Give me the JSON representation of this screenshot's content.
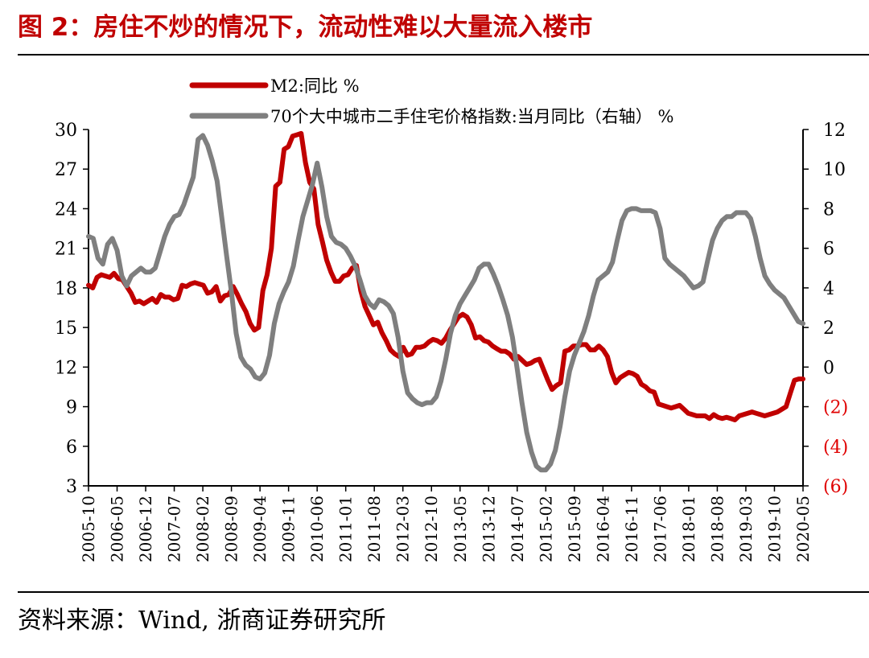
{
  "figure": {
    "title": "图 2：房住不炒的情况下，流动性难以大量流入楼市",
    "source": "资料来源：Wind, 浙商证券研究所"
  },
  "chart_data": {
    "type": "line",
    "title": "图 2：房住不炒的情况下，流动性难以大量流入楼市",
    "legend_position": "top",
    "x_tick_labels": [
      "2005-10",
      "2006-05",
      "2006-12",
      "2007-07",
      "2008-02",
      "2008-09",
      "2009-04",
      "2009-11",
      "2010-06",
      "2011-01",
      "2011-08",
      "2012-03",
      "2012-10",
      "2013-05",
      "2013-12",
      "2014-07",
      "2015-02",
      "2015-09",
      "2016-04",
      "2016-11",
      "2017-06",
      "2018-01",
      "2018-08",
      "2019-03",
      "2019-10",
      "2020-05"
    ],
    "y_left": {
      "min": 3,
      "max": 30,
      "ticks": [
        "3",
        "6",
        "9",
        "12",
        "15",
        "18",
        "21",
        "24",
        "27",
        "30"
      ]
    },
    "y_right": {
      "min": -6,
      "max": 12,
      "ticks": [
        "(6)",
        "(4)",
        "(2)",
        "0",
        "2",
        "4",
        "6",
        "8",
        "10",
        "12"
      ]
    },
    "series": [
      {
        "name": "M2:同比 %",
        "axis": "left",
        "color": "#c00000",
        "values": [
          18.2,
          18.0,
          18.8,
          19.0,
          18.9,
          18.8,
          19.1,
          18.7,
          18.6,
          18.1,
          17.6,
          16.9,
          17.0,
          16.8,
          17.0,
          17.2,
          16.9,
          17.5,
          17.3,
          17.3,
          17.1,
          17.2,
          18.2,
          18.1,
          18.3,
          18.4,
          18.3,
          18.2,
          17.6,
          17.7,
          18.1,
          17.0,
          17.4,
          17.5,
          18.1,
          17.5,
          16.8,
          16.2,
          15.3,
          14.8,
          15.0,
          17.8,
          19.0,
          21.0,
          25.7,
          26.0,
          28.5,
          28.7,
          29.5,
          29.6,
          29.7,
          27.5,
          26.0,
          25.5,
          22.8,
          21.5,
          20.1,
          19.2,
          18.5,
          18.5,
          18.9,
          19.0,
          19.5,
          19.7,
          17.8,
          16.6,
          15.9,
          15.2,
          15.4,
          14.6,
          14.0,
          13.3,
          13.0,
          12.8,
          13.5,
          12.9,
          13.0,
          13.5,
          13.5,
          13.6,
          13.9,
          14.1,
          14.0,
          13.8,
          14.2,
          14.8,
          15.3,
          15.8,
          16.0,
          15.8,
          15.2,
          14.2,
          14.3,
          14.0,
          13.9,
          13.6,
          13.4,
          13.2,
          13.2,
          13.0,
          12.6,
          12.8,
          12.5,
          12.2,
          12.3,
          12.5,
          12.6,
          11.8,
          11.0,
          10.3,
          10.6,
          10.8,
          13.2,
          13.3,
          13.6,
          13.6,
          13.7,
          13.7,
          13.3,
          13.3,
          13.6,
          13.3,
          12.8,
          11.6,
          10.8,
          11.2,
          11.4,
          11.6,
          11.5,
          11.3,
          10.7,
          10.5,
          10.2,
          10.1,
          9.2,
          9.1,
          9.0,
          8.9,
          9.0,
          9.1,
          8.8,
          8.5,
          8.4,
          8.3,
          8.3,
          8.3,
          8.1,
          8.4,
          8.2,
          8.1,
          8.2,
          8.1,
          8.0,
          8.3,
          8.4,
          8.5,
          8.6,
          8.5,
          8.4,
          8.3,
          8.4,
          8.5,
          8.6,
          8.8,
          9.0,
          10.0,
          11.0,
          11.1,
          11.1
        ]
      },
      {
        "name": "70个大中城市二手住宅价格指数:当月同比（右轴） %",
        "axis": "right",
        "color": "#7f7f7f",
        "values": [
          6.6,
          6.5,
          5.5,
          5.2,
          6.2,
          6.5,
          5.9,
          4.6,
          4.1,
          4.6,
          4.8,
          5.0,
          4.8,
          4.8,
          5.0,
          5.8,
          6.6,
          7.2,
          7.6,
          7.7,
          8.2,
          8.9,
          9.6,
          11.5,
          11.7,
          11.2,
          10.4,
          9.4,
          7.5,
          5.6,
          3.8,
          1.7,
          0.5,
          0.1,
          -0.1,
          -0.5,
          -0.6,
          -0.3,
          0.6,
          2.2,
          3.2,
          3.8,
          4.3,
          5.1,
          6.4,
          7.6,
          8.4,
          9.2,
          10.3,
          9.1,
          7.6,
          6.6,
          6.3,
          6.2,
          6.0,
          5.6,
          5.1,
          4.4,
          3.6,
          3.2,
          3.0,
          3.4,
          3.3,
          3.1,
          2.7,
          1.5,
          -0.2,
          -1.3,
          -1.6,
          -1.8,
          -1.9,
          -1.8,
          -1.8,
          -1.5,
          -0.7,
          0.4,
          1.7,
          2.6,
          3.2,
          3.6,
          4.0,
          4.4,
          5.0,
          5.2,
          5.2,
          4.7,
          4.1,
          3.4,
          2.6,
          1.5,
          -0.1,
          -1.8,
          -3.3,
          -4.3,
          -5.0,
          -5.2,
          -5.2,
          -4.9,
          -4.2,
          -3.0,
          -1.5,
          -0.2,
          0.6,
          1.2,
          1.8,
          2.6,
          3.6,
          4.4,
          4.6,
          4.8,
          5.3,
          6.4,
          7.4,
          7.9,
          8.0,
          8.0,
          7.9,
          7.9,
          7.9,
          7.8,
          7.0,
          5.5,
          5.2,
          5.0,
          4.8,
          4.6,
          4.3,
          4.0,
          4.1,
          4.3,
          5.4,
          6.4,
          7.0,
          7.4,
          7.6,
          7.6,
          7.8,
          7.8,
          7.8,
          7.5,
          6.6,
          5.5,
          4.6,
          4.2,
          3.9,
          3.7,
          3.5,
          3.1,
          2.7,
          2.3,
          2.2
        ]
      }
    ]
  }
}
